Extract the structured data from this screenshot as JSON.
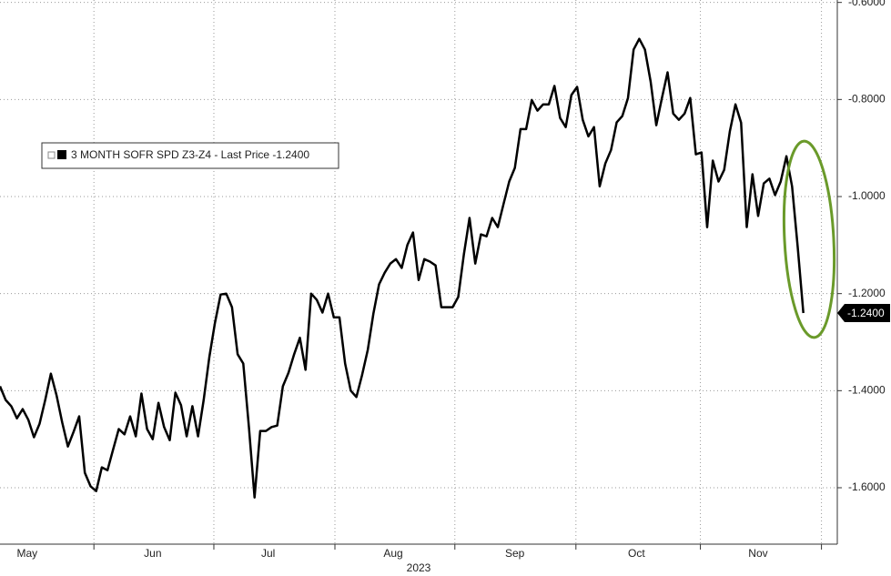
{
  "chart_data": {
    "type": "line",
    "legend": "3 MONTH SOFR SPD Z3-Z4 - Last Price -1.2400",
    "series": [
      {
        "name": "3 MONTH SOFR SPD Z3-Z4",
        "color": "#000000",
        "values": [
          -1.391,
          -1.419,
          -1.432,
          -1.457,
          -1.438,
          -1.46,
          -1.496,
          -1.468,
          -1.419,
          -1.365,
          -1.41,
          -1.466,
          -1.515,
          -1.485,
          -1.453,
          -1.569,
          -1.597,
          -1.607,
          -1.558,
          -1.564,
          -1.521,
          -1.479,
          -1.49,
          -1.453,
          -1.494,
          -1.406,
          -1.479,
          -1.5,
          -1.425,
          -1.475,
          -1.502,
          -1.404,
          -1.43,
          -1.494,
          -1.432,
          -1.494,
          -1.419,
          -1.331,
          -1.26,
          -1.202,
          -1.2,
          -1.228,
          -1.325,
          -1.344,
          -1.475,
          -1.62,
          -1.483,
          -1.483,
          -1.475,
          -1.472,
          -1.391,
          -1.363,
          -1.325,
          -1.291,
          -1.357,
          -1.2,
          -1.213,
          -1.239,
          -1.2,
          -1.249,
          -1.249,
          -1.344,
          -1.4,
          -1.413,
          -1.368,
          -1.316,
          -1.241,
          -1.181,
          -1.157,
          -1.138,
          -1.129,
          -1.147,
          -1.1,
          -1.074,
          -1.172,
          -1.129,
          -1.134,
          -1.142,
          -1.228,
          -1.228,
          -1.228,
          -1.207,
          -1.119,
          -1.044,
          -1.138,
          -1.078,
          -1.082,
          -1.044,
          -1.063,
          -1.016,
          -0.969,
          -0.941,
          -0.861,
          -0.861,
          -0.801,
          -0.823,
          -0.81,
          -0.81,
          -0.772,
          -0.838,
          -0.857,
          -0.791,
          -0.774,
          -0.842,
          -0.876,
          -0.857,
          -0.979,
          -0.932,
          -0.904,
          -0.847,
          -0.834,
          -0.797,
          -0.697,
          -0.675,
          -0.697,
          -0.763,
          -0.853,
          -0.797,
          -0.744,
          -0.829,
          -0.842,
          -0.829,
          -0.797,
          -0.913,
          -0.909,
          -1.063,
          -0.926,
          -0.969,
          -0.945,
          -0.866,
          -0.81,
          -0.848,
          -1.063,
          -0.954,
          -1.04,
          -0.973,
          -0.963,
          -0.997,
          -0.969,
          -0.917,
          -0.979,
          -1.104,
          -1.24
        ]
      }
    ],
    "last_value_label": {
      "value": -1.24,
      "label": "-1.2400"
    },
    "xlim": [
      0,
      148
    ],
    "xticks": [
      {
        "value": 4.8,
        "label": "May"
      },
      {
        "value": 27,
        "label": "Jun"
      },
      {
        "value": 47.4,
        "label": "Jul"
      },
      {
        "value": 69.5,
        "label": "Aug"
      },
      {
        "value": 91,
        "label": "Sep"
      },
      {
        "value": 112.5,
        "label": "Oct"
      },
      {
        "value": 134,
        "label": "Nov"
      }
    ],
    "xgrid": [
      16.6,
      37.8,
      59.2,
      80.4,
      101.8,
      123.8,
      145.2
    ],
    "xlabel": "2023",
    "ylim": [
      -1.72,
      -0.595
    ],
    "yticks": [
      {
        "value": -0.6,
        "label": "-0.6000"
      },
      {
        "value": -0.8,
        "label": "-0.8000"
      },
      {
        "value": -1.0,
        "label": "-1.0000"
      },
      {
        "value": -1.2,
        "label": "-1.2000"
      },
      {
        "value": -1.4,
        "label": "-1.4000"
      },
      {
        "value": -1.6,
        "label": "-1.6000"
      }
    ],
    "grid": true
  }
}
